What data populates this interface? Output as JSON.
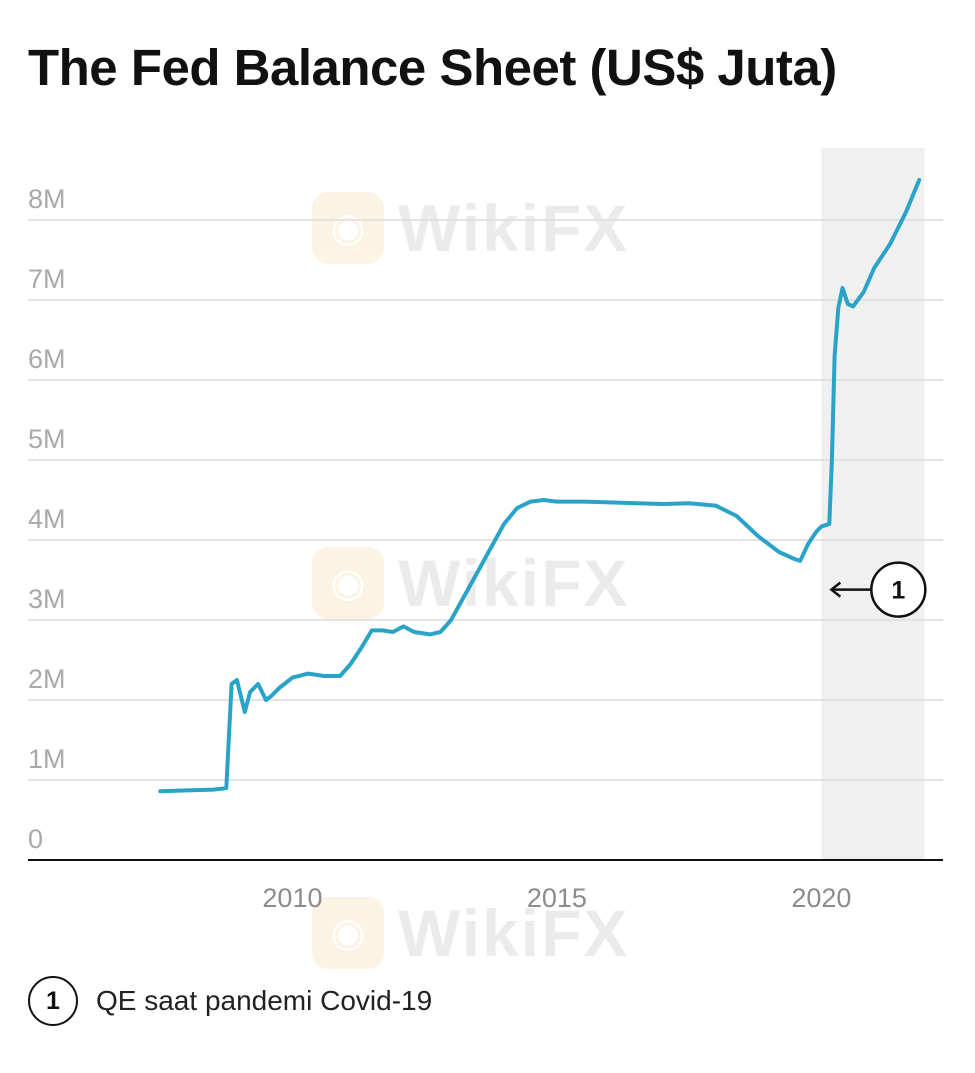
{
  "chart_data": {
    "type": "line",
    "title": "The Fed Balance Sheet (US$ Juta)",
    "xlabel": "",
    "ylabel": "",
    "x_ticks": [
      "2010",
      "2015",
      "2020"
    ],
    "y_ticks": [
      "0",
      "1M",
      "2M",
      "3M",
      "4M",
      "5M",
      "6M",
      "7M",
      "8M"
    ],
    "xlim": [
      2005.0,
      2022.3
    ],
    "ylim": [
      0,
      8.9
    ],
    "y_unit": "M",
    "grid": true,
    "line_color": "#2aa3c9",
    "series": [
      {
        "name": "Fed balance sheet",
        "x": [
          2007.5,
          2008.0,
          2008.5,
          2008.65,
          2008.75,
          2008.85,
          2008.95,
          2009.1,
          2009.2,
          2009.35,
          2009.5,
          2009.6,
          2009.75,
          2010.0,
          2010.3,
          2010.6,
          2010.9,
          2011.1,
          2011.3,
          2011.5,
          2011.7,
          2011.9,
          2012.1,
          2012.3,
          2012.6,
          2012.8,
          2013.0,
          2013.25,
          2013.5,
          2013.75,
          2014.0,
          2014.25,
          2014.5,
          2014.75,
          2015.0,
          2015.5,
          2016.0,
          2016.5,
          2017.0,
          2017.5,
          2018.0,
          2018.4,
          2018.8,
          2019.2,
          2019.5,
          2019.6,
          2019.75,
          2019.9,
          2020.0,
          2020.15,
          2020.2,
          2020.25,
          2020.32,
          2020.4,
          2020.5,
          2020.6,
          2020.8,
          2021.0,
          2021.3,
          2021.6,
          2021.85
        ],
        "y": [
          0.86,
          0.87,
          0.88,
          0.89,
          0.9,
          2.2,
          2.25,
          1.85,
          2.1,
          2.2,
          2.0,
          2.05,
          2.15,
          2.28,
          2.33,
          2.3,
          2.3,
          2.45,
          2.65,
          2.87,
          2.87,
          2.85,
          2.92,
          2.85,
          2.82,
          2.85,
          3.0,
          3.3,
          3.6,
          3.9,
          4.2,
          4.4,
          4.48,
          4.5,
          4.48,
          4.48,
          4.47,
          4.46,
          4.45,
          4.46,
          4.43,
          4.3,
          4.05,
          3.85,
          3.76,
          3.74,
          3.95,
          4.1,
          4.17,
          4.2,
          5.0,
          6.3,
          6.9,
          7.15,
          6.95,
          6.92,
          7.1,
          7.4,
          7.7,
          8.1,
          8.5
        ]
      }
    ],
    "highlight_region": {
      "from": 2020.0,
      "to": 2021.95,
      "color": "#f0f0f0"
    },
    "annotations": [
      {
        "marker": "1",
        "x": 2020.0,
        "y": 3.38,
        "text": "QE saat pandemi Covid-19"
      }
    ]
  },
  "footnote": {
    "badge": "1",
    "text": "QE saat pandemi Covid-19"
  },
  "watermark": {
    "text": "WikiFX"
  }
}
